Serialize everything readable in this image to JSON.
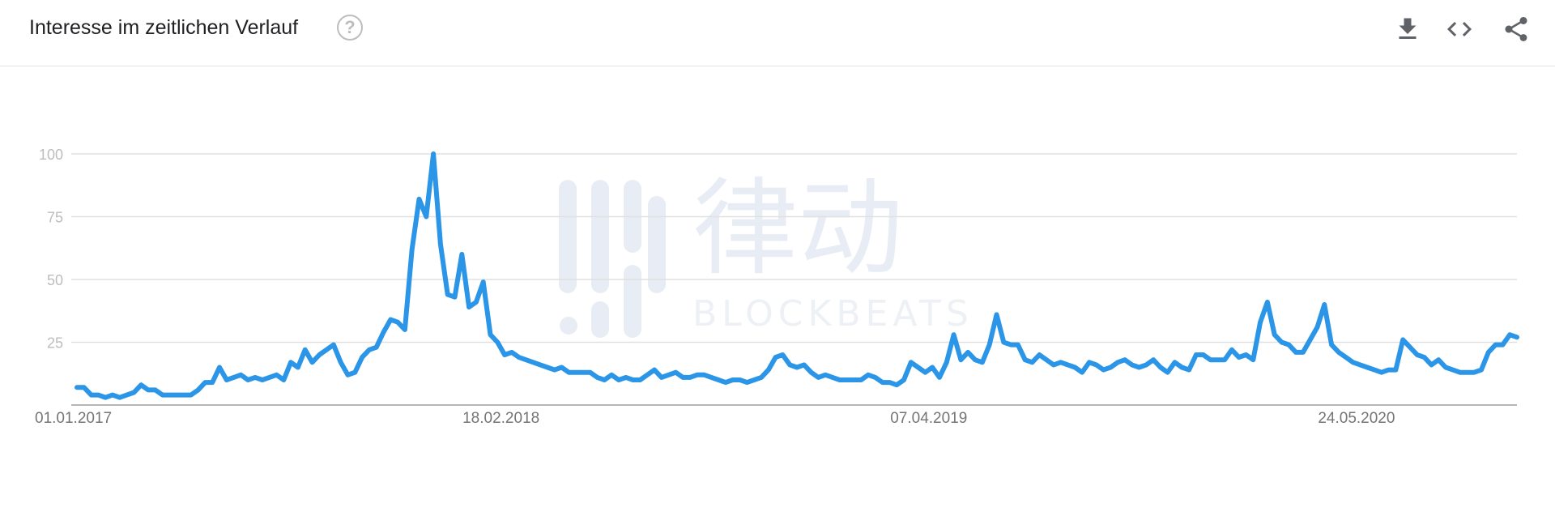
{
  "header": {
    "title": "Interesse im zeitlichen Verlauf",
    "help_icon": "help-circle-icon",
    "actions": [
      {
        "name": "download",
        "icon": "download-icon"
      },
      {
        "name": "embed",
        "icon": "code-icon"
      },
      {
        "name": "share",
        "icon": "share-icon"
      }
    ]
  },
  "colors": {
    "line": "#2b95e8",
    "grid": "#e0e0e0",
    "axis": "#9e9e9e",
    "watermark": "#e8ecf4"
  },
  "watermark": {
    "chinese": "律动",
    "latin": "BLOCKBEATS"
  },
  "chart_data": {
    "type": "line",
    "title": "Interesse im zeitlichen Verlauf",
    "xlabel": "",
    "ylabel": "",
    "ylim": [
      0,
      100
    ],
    "yticks": [
      25,
      50,
      75,
      100
    ],
    "x_start": "01.01.2017",
    "x_end": "16.01.2021",
    "xticks": [
      "01.01.2017",
      "18.02.2018",
      "07.04.2019",
      "24.05.2020"
    ],
    "grid": true,
    "series": [
      {
        "values": [
          7,
          7,
          4,
          4,
          3,
          4,
          3,
          4,
          5,
          8,
          6,
          6,
          4,
          4,
          4,
          4,
          4,
          6,
          9,
          9,
          15,
          10,
          11,
          12,
          10,
          11,
          10,
          11,
          12,
          10,
          17,
          15,
          22,
          17,
          20,
          22,
          24,
          17,
          12,
          13,
          19,
          22,
          23,
          29,
          34,
          33,
          30,
          62,
          82,
          75,
          100,
          64,
          44,
          43,
          60,
          39,
          41,
          49,
          28,
          25,
          20,
          21,
          19,
          18,
          17,
          16,
          15,
          14,
          15,
          13,
          13,
          13,
          13,
          11,
          10,
          12,
          10,
          11,
          10,
          10,
          12,
          14,
          11,
          12,
          13,
          11,
          11,
          12,
          12,
          11,
          10,
          9,
          10,
          10,
          9,
          10,
          11,
          14,
          19,
          20,
          16,
          15,
          16,
          13,
          11,
          12,
          11,
          10,
          10,
          10,
          10,
          12,
          11,
          9,
          9,
          8,
          10,
          17,
          15,
          13,
          15,
          11,
          17,
          28,
          18,
          21,
          18,
          17,
          24,
          36,
          25,
          24,
          24,
          18,
          17,
          20,
          18,
          16,
          17,
          16,
          15,
          13,
          17,
          16,
          14,
          15,
          17,
          18,
          16,
          15,
          16,
          18,
          15,
          13,
          17,
          15,
          14,
          20,
          20,
          18,
          18,
          18,
          22,
          19,
          20,
          18,
          33,
          41,
          28,
          25,
          24,
          21,
          21,
          26,
          31,
          40,
          24,
          21,
          19,
          17,
          16,
          15,
          14,
          13,
          14,
          14,
          26,
          23,
          20,
          19,
          16,
          18,
          15,
          14,
          13,
          13,
          13,
          14,
          21,
          24,
          24,
          28,
          27
        ]
      }
    ]
  }
}
